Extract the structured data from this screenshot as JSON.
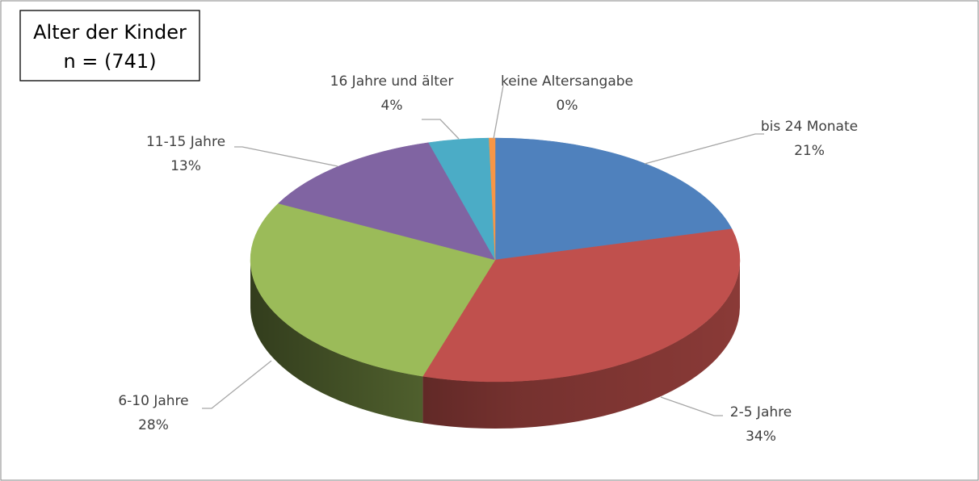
{
  "chart_data": {
    "type": "pie3d",
    "title": [
      "Alter der Kinder",
      "n = (741)"
    ],
    "categories": [
      "bis 24 Monate",
      "2-5 Jahre",
      "6-10 Jahre",
      "11-15 Jahre",
      "16 Jahre und älter",
      "keine Altersangabe"
    ],
    "values": [
      21,
      34,
      28,
      13,
      4,
      0.4
    ],
    "value_labels": [
      "21%",
      "34%",
      "28%",
      "13%",
      "4%",
      "0%"
    ],
    "colors": [
      "#4f81bd",
      "#c0504d",
      "#9bbb59",
      "#8064a2",
      "#4bacc6",
      "#f79646"
    ]
  }
}
